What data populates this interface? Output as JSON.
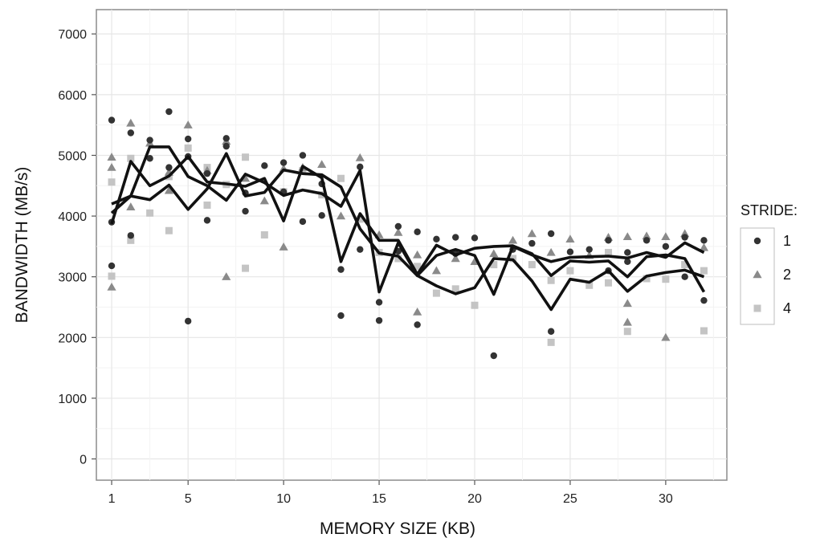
{
  "chart_data": {
    "type": "scatter",
    "title": "",
    "xlabel": "MEMORY SIZE (KB)",
    "ylabel": "BANDWIDTH (MB/s)",
    "xlim": [
      0.2,
      33.2
    ],
    "ylim": [
      -350,
      7400
    ],
    "x_ticks": [
      1,
      5,
      10,
      15,
      20,
      25,
      30
    ],
    "y_ticks": [
      0,
      1000,
      2000,
      3000,
      4000,
      5000,
      6000,
      7000
    ],
    "grid": true,
    "legend": {
      "title": "STRIDE:",
      "placement": "right",
      "entries": [
        "1",
        "2",
        "4"
      ]
    },
    "series": [
      {
        "name": "1",
        "marker": "circle",
        "color": "#333333",
        "points": [
          [
            1,
            5580
          ],
          [
            1,
            3900
          ],
          [
            1,
            3180
          ],
          [
            2,
            5370
          ],
          [
            2,
            3680
          ],
          [
            3,
            5250
          ],
          [
            3,
            4950
          ],
          [
            4,
            5720
          ],
          [
            4,
            4800
          ],
          [
            5,
            5270
          ],
          [
            5,
            4980
          ],
          [
            5,
            2270
          ],
          [
            6,
            4700
          ],
          [
            6,
            3930
          ],
          [
            7,
            5280
          ],
          [
            7,
            5150
          ],
          [
            8,
            4380
          ],
          [
            8,
            4080
          ],
          [
            9,
            4830
          ],
          [
            10,
            4880
          ],
          [
            10,
            4400
          ],
          [
            11,
            5000
          ],
          [
            11,
            3910
          ],
          [
            12,
            4530
          ],
          [
            12,
            4010
          ],
          [
            13,
            3120
          ],
          [
            13,
            2360
          ],
          [
            14,
            4810
          ],
          [
            14,
            3450
          ],
          [
            15,
            2580
          ],
          [
            15,
            2280
          ],
          [
            16,
            3830
          ],
          [
            16,
            3420
          ],
          [
            17,
            3740
          ],
          [
            17,
            2210
          ],
          [
            18,
            3620
          ],
          [
            19,
            3650
          ],
          [
            19,
            3380
          ],
          [
            20,
            3640
          ],
          [
            21,
            1700
          ],
          [
            22,
            3450
          ],
          [
            23,
            3550
          ],
          [
            24,
            3710
          ],
          [
            24,
            2100
          ],
          [
            25,
            3410
          ],
          [
            26,
            3450
          ],
          [
            27,
            3600
          ],
          [
            27,
            3100
          ],
          [
            28,
            3400
          ],
          [
            28,
            3250
          ],
          [
            29,
            3600
          ],
          [
            30,
            3500
          ],
          [
            31,
            3000
          ],
          [
            31,
            3650
          ],
          [
            32,
            3600
          ],
          [
            32,
            2610
          ]
        ],
        "line": [
          [
            1,
            3870
          ],
          [
            2,
            4900
          ],
          [
            3,
            4500
          ],
          [
            4,
            4660
          ],
          [
            5,
            4980
          ],
          [
            6,
            4560
          ],
          [
            7,
            4530
          ],
          [
            8,
            4490
          ],
          [
            9,
            4620
          ],
          [
            10,
            3920
          ],
          [
            11,
            4820
          ],
          [
            12,
            4630
          ],
          [
            13,
            3250
          ],
          [
            14,
            4040
          ],
          [
            15,
            3600
          ],
          [
            16,
            3600
          ],
          [
            17,
            3040
          ],
          [
            18,
            3520
          ],
          [
            19,
            3360
          ],
          [
            20,
            3470
          ],
          [
            21,
            3500
          ],
          [
            22,
            3510
          ],
          [
            23,
            3380
          ],
          [
            24,
            3020
          ],
          [
            25,
            3260
          ],
          [
            26,
            3240
          ],
          [
            27,
            3260
          ],
          [
            28,
            3000
          ],
          [
            29,
            3330
          ],
          [
            30,
            3360
          ],
          [
            31,
            3300
          ],
          [
            32,
            2750
          ]
        ]
      },
      {
        "name": "2",
        "marker": "triangle",
        "color": "#8a8a8a",
        "points": [
          [
            1,
            4970
          ],
          [
            1,
            4800
          ],
          [
            1,
            2830
          ],
          [
            2,
            5530
          ],
          [
            2,
            4150
          ],
          [
            3,
            5200
          ],
          [
            4,
            4720
          ],
          [
            4,
            4420
          ],
          [
            5,
            5500
          ],
          [
            6,
            4750
          ],
          [
            7,
            5230
          ],
          [
            7,
            3000
          ],
          [
            8,
            4620
          ],
          [
            9,
            4250
          ],
          [
            10,
            4780
          ],
          [
            10,
            3490
          ],
          [
            11,
            4800
          ],
          [
            12,
            4850
          ],
          [
            13,
            4000
          ],
          [
            14,
            4960
          ],
          [
            15,
            3690
          ],
          [
            16,
            3730
          ],
          [
            17,
            3360
          ],
          [
            17,
            2420
          ],
          [
            18,
            3100
          ],
          [
            19,
            3300
          ],
          [
            20,
            3250
          ],
          [
            21,
            3380
          ],
          [
            22,
            3600
          ],
          [
            23,
            3710
          ],
          [
            24,
            3400
          ],
          [
            25,
            3620
          ],
          [
            26,
            3350
          ],
          [
            27,
            3650
          ],
          [
            28,
            3660
          ],
          [
            28,
            2560
          ],
          [
            28,
            2250
          ],
          [
            29,
            3670
          ],
          [
            30,
            3660
          ],
          [
            30,
            2000
          ],
          [
            31,
            3710
          ],
          [
            32,
            3480
          ]
        ],
        "line": [
          [
            1,
            4200
          ],
          [
            2,
            4330
          ],
          [
            3,
            4270
          ],
          [
            4,
            4510
          ],
          [
            5,
            4110
          ],
          [
            6,
            4450
          ],
          [
            7,
            5030
          ],
          [
            8,
            4330
          ],
          [
            9,
            4390
          ],
          [
            10,
            4760
          ],
          [
            11,
            4700
          ],
          [
            12,
            4680
          ],
          [
            13,
            4480
          ],
          [
            14,
            3790
          ],
          [
            15,
            3390
          ],
          [
            16,
            3340
          ],
          [
            17,
            3020
          ],
          [
            18,
            3350
          ],
          [
            19,
            3450
          ],
          [
            20,
            3350
          ],
          [
            21,
            2710
          ],
          [
            22,
            3500
          ],
          [
            23,
            3360
          ],
          [
            24,
            3250
          ],
          [
            25,
            3320
          ],
          [
            26,
            3330
          ],
          [
            27,
            3340
          ],
          [
            28,
            3310
          ],
          [
            29,
            3400
          ],
          [
            30,
            3320
          ],
          [
            31,
            3560
          ],
          [
            32,
            3400
          ]
        ]
      },
      {
        "name": "4",
        "marker": "square",
        "color": "#c4c4c4",
        "points": [
          [
            1,
            4560
          ],
          [
            1,
            3010
          ],
          [
            2,
            4950
          ],
          [
            2,
            3600
          ],
          [
            3,
            4050
          ],
          [
            4,
            3760
          ],
          [
            4,
            4650
          ],
          [
            5,
            5120
          ],
          [
            6,
            4800
          ],
          [
            6,
            4180
          ],
          [
            7,
            4520
          ],
          [
            8,
            4970
          ],
          [
            8,
            3140
          ],
          [
            9,
            3690
          ],
          [
            10,
            4400
          ],
          [
            11,
            4750
          ],
          [
            12,
            4350
          ],
          [
            13,
            4620
          ],
          [
            14,
            3950
          ],
          [
            15,
            3400
          ],
          [
            16,
            3300
          ],
          [
            17,
            3170
          ],
          [
            18,
            2730
          ],
          [
            19,
            2800
          ],
          [
            20,
            2530
          ],
          [
            21,
            3200
          ],
          [
            22,
            3300
          ],
          [
            23,
            3200
          ],
          [
            24,
            2940
          ],
          [
            24,
            1920
          ],
          [
            25,
            3100
          ],
          [
            26,
            2860
          ],
          [
            27,
            3400
          ],
          [
            27,
            2900
          ],
          [
            28,
            2100
          ],
          [
            29,
            2970
          ],
          [
            30,
            2960
          ],
          [
            31,
            3200
          ],
          [
            32,
            3100
          ],
          [
            32,
            2110
          ]
        ],
        "line": [
          [
            1,
            4050
          ],
          [
            2,
            4330
          ],
          [
            3,
            5140
          ],
          [
            4,
            5140
          ],
          [
            5,
            4650
          ],
          [
            6,
            4500
          ],
          [
            7,
            4260
          ],
          [
            8,
            4690
          ],
          [
            9,
            4550
          ],
          [
            10,
            4340
          ],
          [
            11,
            4430
          ],
          [
            12,
            4370
          ],
          [
            13,
            4160
          ],
          [
            14,
            4750
          ],
          [
            15,
            2750
          ],
          [
            16,
            3560
          ],
          [
            17,
            3020
          ],
          [
            18,
            2850
          ],
          [
            19,
            2720
          ],
          [
            20,
            2820
          ],
          [
            21,
            3300
          ],
          [
            22,
            3280
          ],
          [
            23,
            2930
          ],
          [
            24,
            2460
          ],
          [
            25,
            2960
          ],
          [
            26,
            2910
          ],
          [
            27,
            3100
          ],
          [
            28,
            2760
          ],
          [
            29,
            3010
          ],
          [
            30,
            3070
          ],
          [
            31,
            3110
          ],
          [
            32,
            3000
          ]
        ]
      }
    ]
  }
}
